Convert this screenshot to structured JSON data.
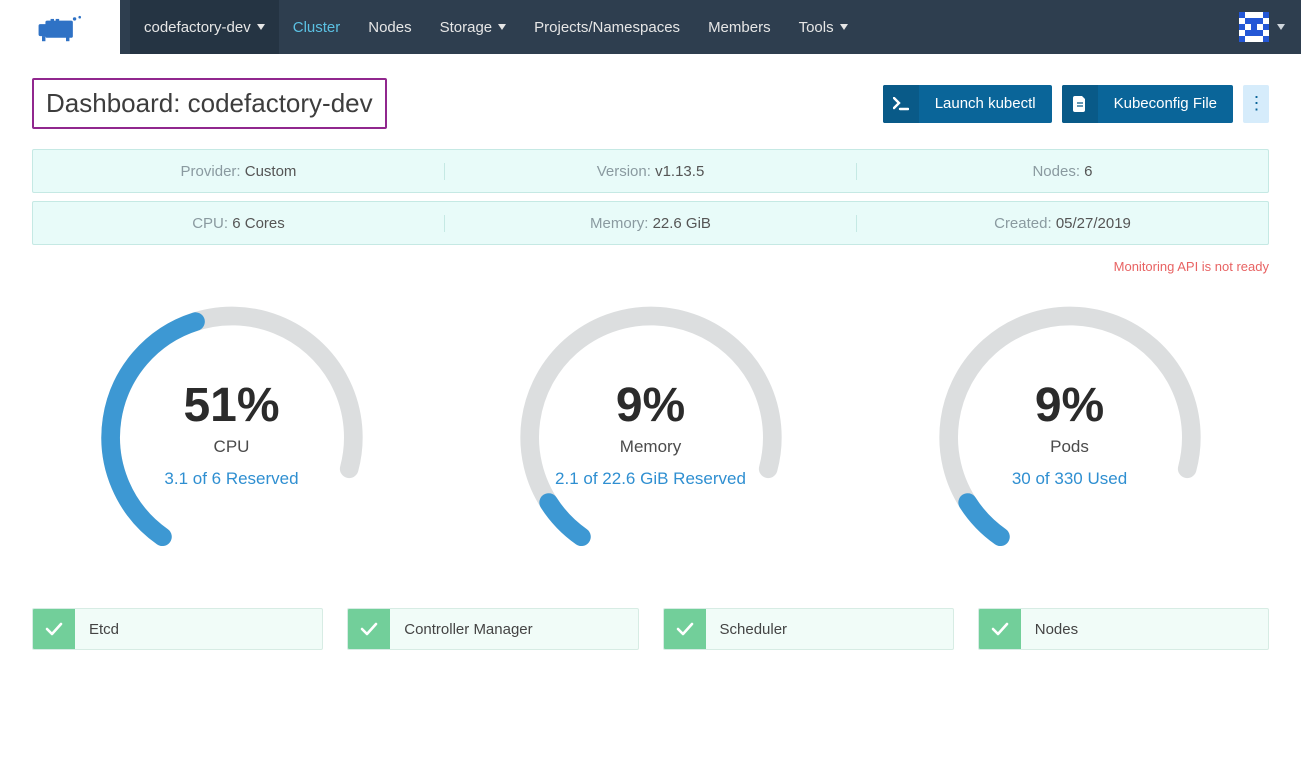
{
  "nav": {
    "cluster_selector": "codefactory-dev",
    "items": [
      "Cluster",
      "Nodes",
      "Storage",
      "Projects/Namespaces",
      "Members",
      "Tools"
    ],
    "active_index": 0,
    "dropdown_indices": [
      2,
      5
    ]
  },
  "header": {
    "title": "Dashboard: codefactory-dev",
    "launch_kubectl": "Launch kubectl",
    "kubeconfig_file": "Kubeconfig File"
  },
  "info_rows": [
    [
      {
        "label": "Provider:",
        "value": "Custom"
      },
      {
        "label": "Version:",
        "value": "v1.13.5"
      },
      {
        "label": "Nodes:",
        "value": "6"
      }
    ],
    [
      {
        "label": "CPU:",
        "value": "6 Cores"
      },
      {
        "label": "Memory:",
        "value": "22.6 GiB"
      },
      {
        "label": "Created:",
        "value": "05/27/2019"
      }
    ]
  ],
  "warning": "Monitoring API is not ready",
  "gauges": [
    {
      "pct_label": "51%",
      "fraction": 0.51,
      "title": "CPU",
      "sub": "3.1 of 6 Reserved"
    },
    {
      "pct_label": "9%",
      "fraction": 0.09,
      "title": "Memory",
      "sub": "2.1 of 22.6 GiB Reserved"
    },
    {
      "pct_label": "9%",
      "fraction": 0.09,
      "title": "Pods",
      "sub": "30 of 330 Used"
    }
  ],
  "gauge_style": {
    "track_color": "#dcdedf",
    "fill_color": "#3d98d3",
    "stroke_width": 20,
    "radius": 130,
    "start_angle_deg": 215,
    "sweep_deg": 250
  },
  "status": [
    "Etcd",
    "Controller Manager",
    "Scheduler",
    "Nodes"
  ],
  "colors": {
    "nav_bg": "#2e3e4f",
    "accent_link": "#2f8fd1",
    "btn_bg": "#0a6599",
    "status_ok": "#72cf9a",
    "highlight_border": "#91278e"
  }
}
